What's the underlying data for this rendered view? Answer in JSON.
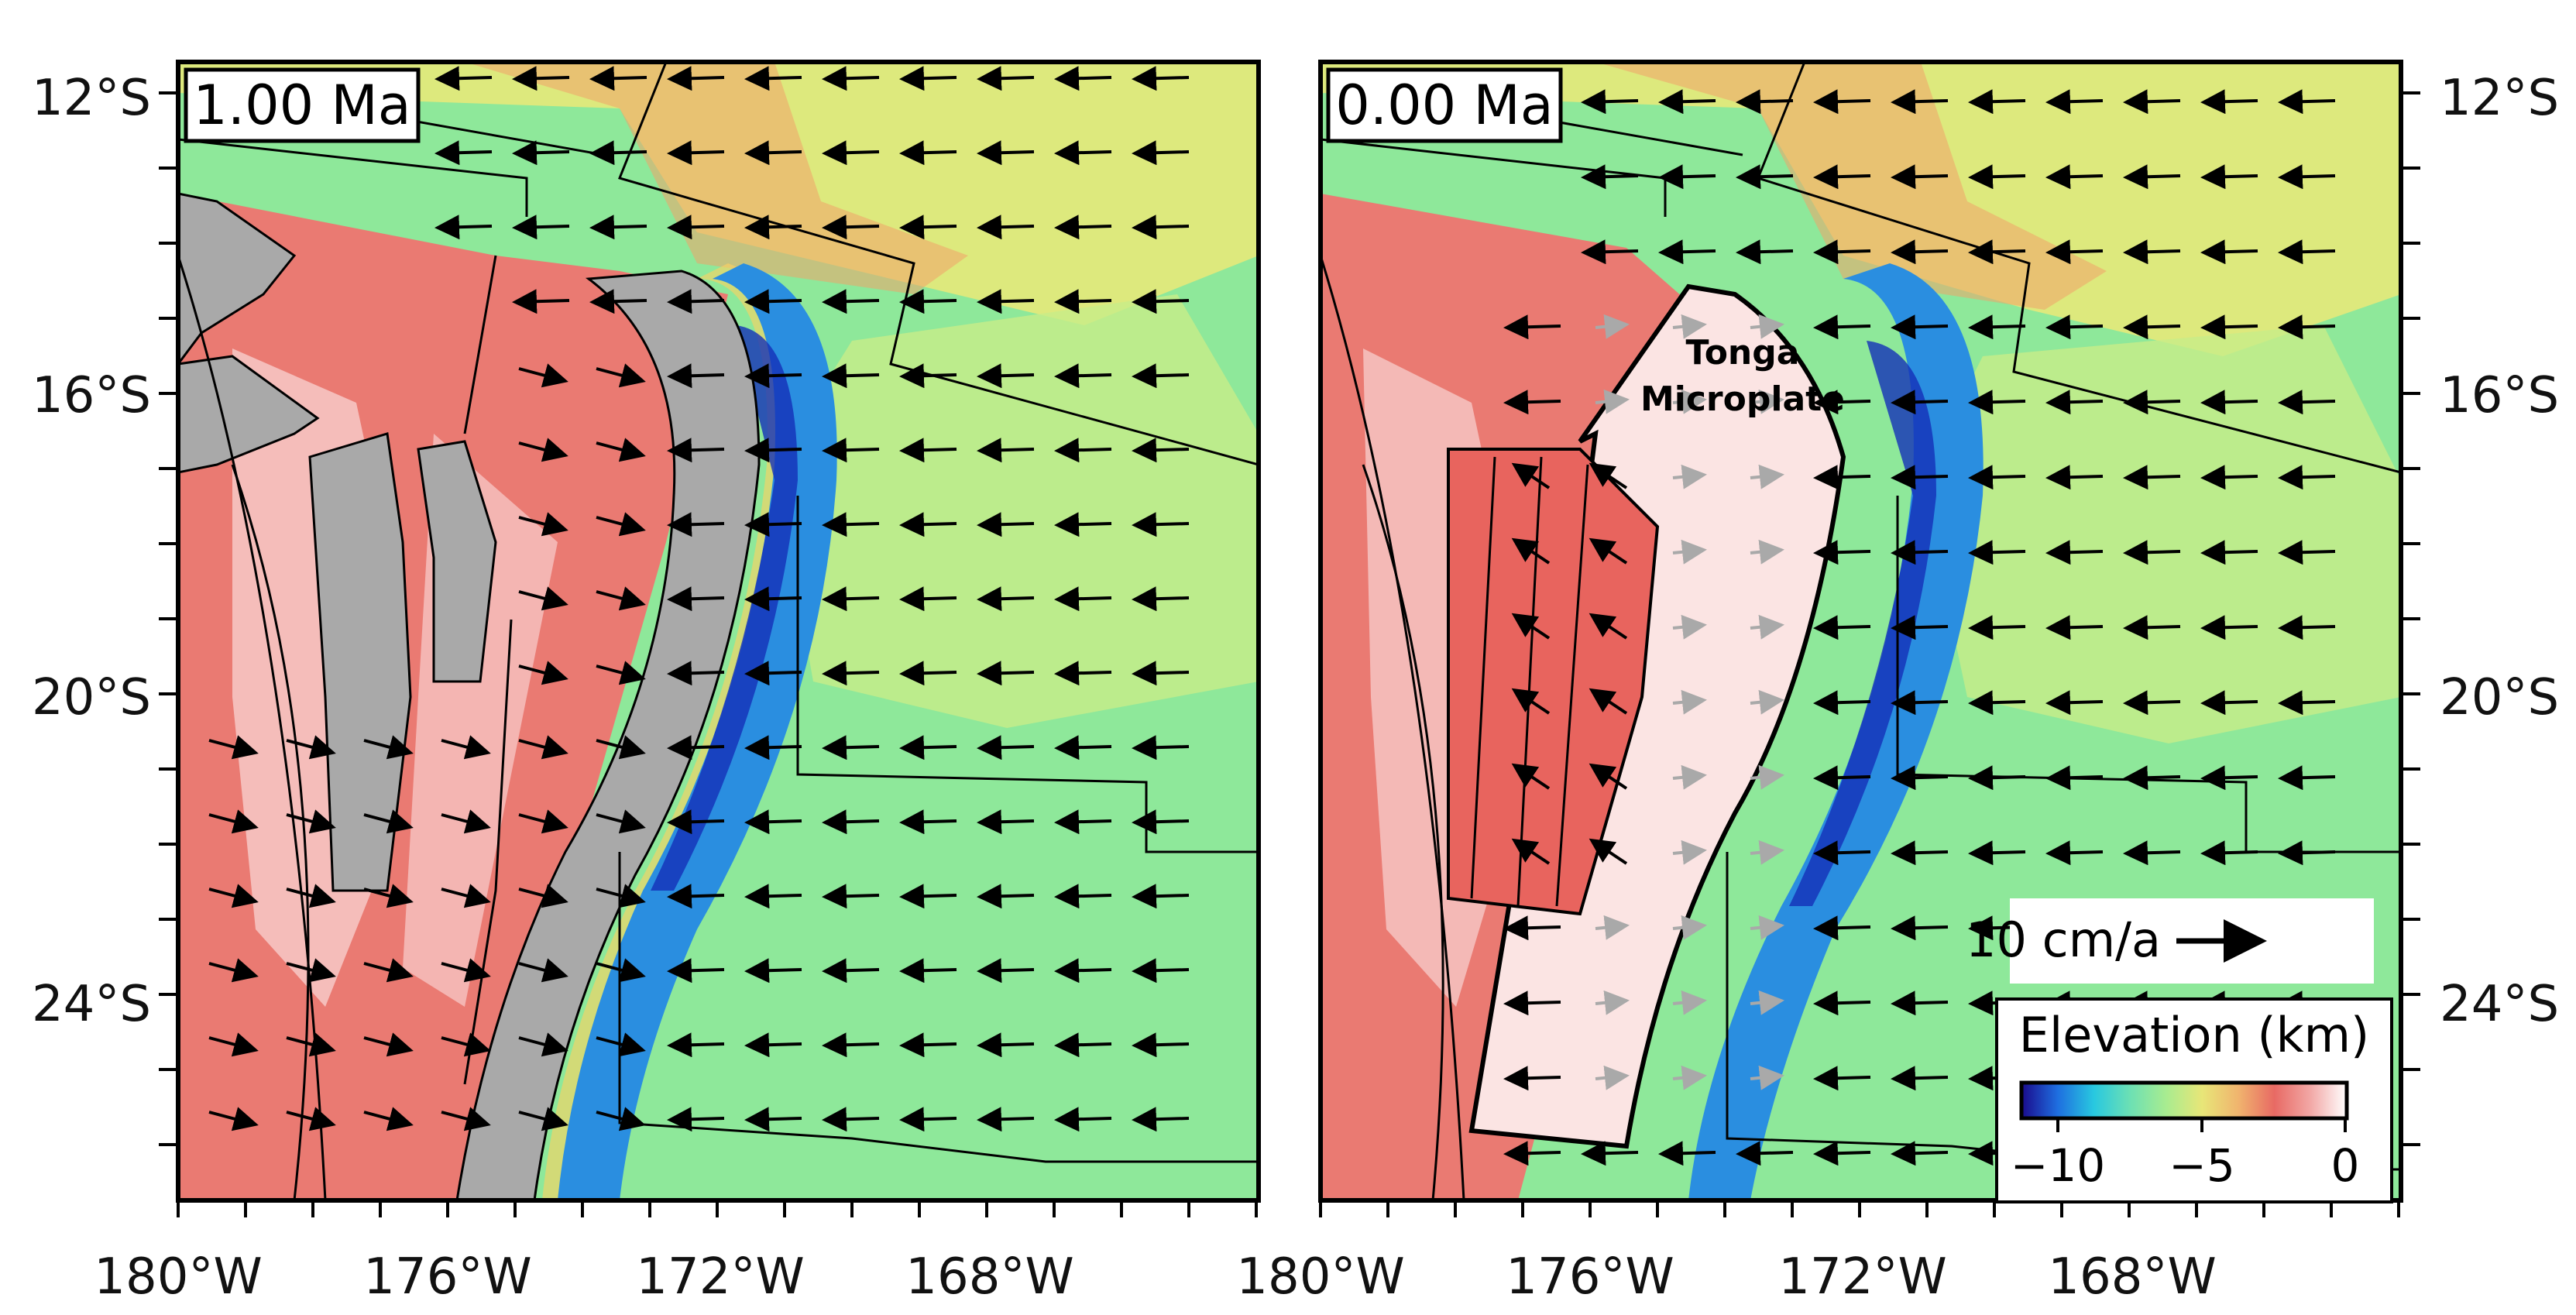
{
  "panels": [
    {
      "id": "left",
      "time_label": "1.00 Ma"
    },
    {
      "id": "right",
      "time_label": "0.00 Ma",
      "microplate_label": [
        "Tonga",
        "Microplate"
      ]
    }
  ],
  "axes": {
    "lon_ticks": [
      "180°W",
      "176°W",
      "172°W",
      "168°W"
    ],
    "lat_ticks": [
      "12°S",
      "16°S",
      "20°S",
      "24°S"
    ]
  },
  "velocity_scale": {
    "label": "10 cm/a",
    "arrow": "→"
  },
  "elevation_legend": {
    "title": "Elevation (km)",
    "ticks": [
      "−10",
      "−5",
      "0"
    ],
    "colors": [
      "#1a0a8c",
      "#1e6ee0",
      "#28c8e0",
      "#6ce0b4",
      "#a8ec90",
      "#e8e678",
      "#f0b46e",
      "#e86a64",
      "#f2a8a6",
      "#ffffff"
    ]
  },
  "colors": {
    "ocean_green": "#8ee89a",
    "ridge_red": "#ea7a72",
    "trench_blue": "#2a8ee0",
    "subducted_gray": "#a9a9a9"
  }
}
